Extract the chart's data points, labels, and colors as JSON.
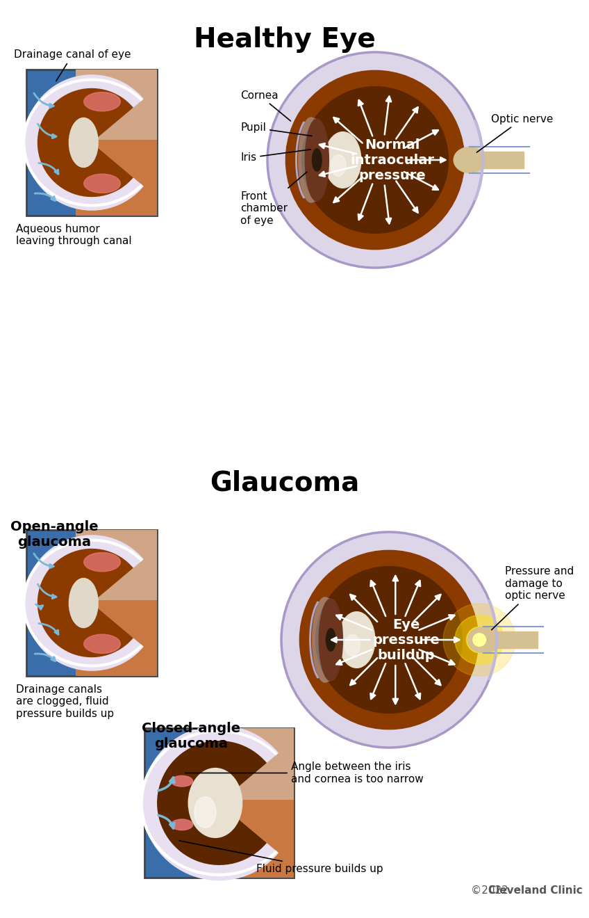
{
  "title_healthy": "Healthy Eye",
  "title_glaucoma": "Glaucoma",
  "bg_color": "#ffffff",
  "title_fontsize": 28,
  "label_fontsize": 11,
  "copyright": "©2022 Cleveland Clinic",
  "eye_brown": "#8B3A00",
  "eye_dark_brown": "#5C2600",
  "eye_sclera": "#ddd5e8",
  "iris_color": "#6B3520",
  "pupil_color": "#2a1a0a",
  "lens_color": "#e8e0d0",
  "optic_nerve_color": "#d4c090",
  "inset_bg": "#3a6eaa",
  "inset_tissue": "#c87840",
  "canal_color": "#7ab8d8",
  "pink_tissue": "#e87878",
  "arrow_color": "#ffffff"
}
